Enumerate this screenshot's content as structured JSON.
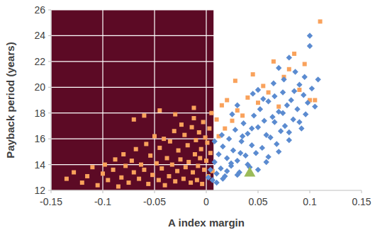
{
  "chart_data": {
    "type": "scatter",
    "x_label": "A index margin",
    "y_label": "Payback period (years)",
    "xlim": [
      -0.15,
      0.15
    ],
    "xticks": [
      -0.15,
      -0.1,
      -0.05,
      0,
      0.05,
      0.1,
      0.15
    ],
    "ylim": [
      12,
      26
    ],
    "yticks": [
      12,
      14,
      16,
      18,
      20,
      22,
      24,
      26
    ],
    "grid": true,
    "regions": [
      {
        "xlim": [
          -0.15,
          0.007
        ],
        "color": "#5c0a25"
      }
    ],
    "series": [
      {
        "color": "#f9a25c",
        "marker": "square",
        "x": [
          -0.135,
          -0.128,
          -0.12,
          -0.115,
          -0.11,
          -0.105,
          -0.1,
          -0.098,
          -0.095,
          -0.09,
          -0.088,
          -0.085,
          -0.082,
          -0.08,
          -0.078,
          -0.075,
          -0.072,
          -0.07,
          -0.068,
          -0.065,
          -0.063,
          -0.06,
          -0.058,
          -0.056,
          -0.054,
          -0.052,
          -0.05,
          -0.048,
          -0.046,
          -0.045,
          -0.043,
          -0.041,
          -0.04,
          -0.038,
          -0.036,
          -0.035,
          -0.033,
          -0.031,
          -0.03,
          -0.028,
          -0.027,
          -0.025,
          -0.024,
          -0.022,
          -0.021,
          -0.02,
          -0.018,
          -0.017,
          -0.015,
          -0.014,
          -0.013,
          -0.012,
          -0.011,
          -0.01,
          -0.009,
          -0.008,
          -0.007,
          -0.006,
          -0.005,
          -0.004,
          -0.003,
          -0.002,
          -0.001,
          0.0,
          0.001,
          0.002,
          0.003,
          0.004,
          0.005,
          0.006,
          0.01,
          0.012,
          0.015,
          0.018,
          0.02,
          0.025,
          0.028,
          0.03,
          0.035,
          0.04,
          0.045,
          0.05,
          0.055,
          0.06,
          0.065,
          0.07,
          0.075,
          0.08,
          0.085,
          0.09,
          0.095,
          0.1,
          0.105,
          0.11,
          -0.06,
          -0.045,
          -0.03,
          -0.012,
          -0.07
        ],
        "values": [
          12.9,
          13.4,
          12.6,
          13.1,
          13.8,
          12.4,
          13.3,
          14.0,
          12.8,
          13.6,
          14.4,
          12.3,
          13.0,
          14.8,
          13.9,
          12.6,
          14.3,
          13.4,
          15.2,
          12.9,
          14.0,
          13.6,
          15.6,
          12.5,
          14.7,
          13.2,
          16.2,
          14.1,
          12.8,
          15.3,
          13.7,
          16.0,
          12.4,
          14.5,
          13.1,
          15.8,
          14.0,
          16.6,
          12.7,
          13.5,
          15.1,
          14.4,
          17.1,
          12.9,
          16.3,
          13.8,
          15.5,
          14.2,
          12.6,
          16.9,
          13.4,
          17.6,
          14.8,
          15.9,
          12.8,
          13.9,
          16.5,
          14.5,
          15.2,
          12.5,
          17.3,
          13.6,
          16.1,
          14.3,
          15.7,
          13.1,
          16.8,
          14.9,
          18.0,
          13.5,
          17.5,
          16.2,
          18.6,
          16.8,
          19.0,
          17.4,
          20.5,
          18.2,
          17.8,
          19.2,
          21.0,
          18.8,
          20.1,
          19.6,
          22.0,
          18.5,
          20.8,
          21.4,
          22.6,
          19.8,
          21.8,
          19.0,
          19.0,
          25.1,
          17.8,
          18.2,
          17.9,
          18.4,
          17.5
        ]
      },
      {
        "color": "#5b8bd0",
        "marker": "diamond",
        "x": [
          0.002,
          0.004,
          0.006,
          0.008,
          0.01,
          0.012,
          0.014,
          0.016,
          0.018,
          0.02,
          0.022,
          0.024,
          0.026,
          0.028,
          0.03,
          0.032,
          0.034,
          0.036,
          0.038,
          0.04,
          0.042,
          0.044,
          0.046,
          0.048,
          0.05,
          0.052,
          0.054,
          0.056,
          0.058,
          0.06,
          0.062,
          0.064,
          0.066,
          0.068,
          0.07,
          0.072,
          0.074,
          0.076,
          0.078,
          0.08,
          0.082,
          0.084,
          0.086,
          0.088,
          0.09,
          0.092,
          0.094,
          0.096,
          0.098,
          0.1,
          0.1,
          0.102,
          0.105,
          0.108,
          0.045,
          0.05,
          0.055,
          0.065,
          0.07,
          0.075,
          0.08,
          0.03,
          0.025,
          0.035,
          0.015,
          0.008,
          0.02,
          0.03,
          0.04,
          0.05,
          0.06,
          0.07,
          0.08,
          0.09,
          0.01,
          0.016,
          0.024,
          0.033,
          0.044,
          0.058,
          0.066,
          0.074,
          0.085,
          0.095
        ],
        "values": [
          13.0,
          13.6,
          12.8,
          14.2,
          13.3,
          14.8,
          13.7,
          15.4,
          13.1,
          14.5,
          16.0,
          13.9,
          15.1,
          16.7,
          14.3,
          13.4,
          15.8,
          17.2,
          14.7,
          16.4,
          13.8,
          15.5,
          17.8,
          14.9,
          16.9,
          18.3,
          15.3,
          17.4,
          14.2,
          18.9,
          16.1,
          17.7,
          19.3,
          15.6,
          18.1,
          16.6,
          19.6,
          17.0,
          18.6,
          15.9,
          19.0,
          17.5,
          21.2,
          18.3,
          20.2,
          16.8,
          19.4,
          17.9,
          18.8,
          24.0,
          23.2,
          19.9,
          18.5,
          20.6,
          19.5,
          19.8,
          19.1,
          20.3,
          21.5,
          20.6,
          22.3,
          18.6,
          17.9,
          16.2,
          16.3,
          15.8,
          13.5,
          13.2,
          14.0,
          13.6,
          14.6,
          15.0,
          16.5,
          17.3,
          12.6,
          12.9,
          14.1,
          14.9,
          16.8,
          16.3,
          17.3,
          18.0,
          19.7,
          20.8
        ]
      },
      {
        "color": "#9bbb59",
        "marker": "triangle",
        "x": [
          0.042
        ],
        "values": [
          13.4
        ]
      }
    ]
  }
}
